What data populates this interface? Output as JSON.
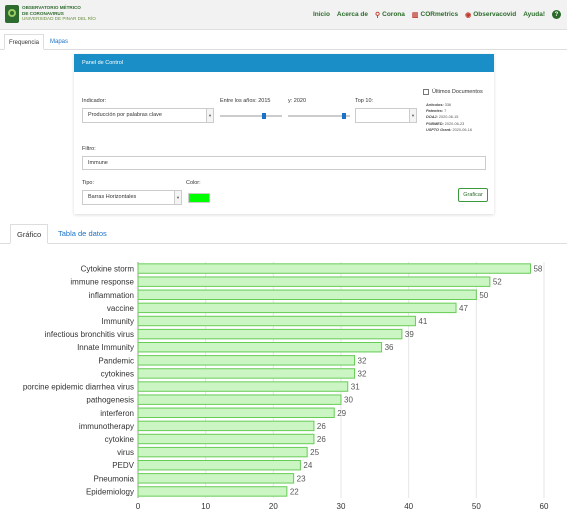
{
  "header": {
    "brand_lines": [
      "OBSERVATORIO MÉTRICO",
      "DE CORONAVIRUS",
      "UNIVERSIDAD DE PINAR DEL RÍO"
    ],
    "nav": [
      {
        "label": "Inicio",
        "icon": ""
      },
      {
        "label": "Acerca de",
        "icon": ""
      },
      {
        "label": "Corona",
        "icon": "magnifier-icon"
      },
      {
        "label": "CORmetrics",
        "icon": "chart-icon"
      },
      {
        "label": "Observacovid",
        "icon": "eye-icon"
      },
      {
        "label": "Ayuda!",
        "icon": "question-icon"
      }
    ]
  },
  "page_tabs": [
    "Frequencia",
    "Mapas"
  ],
  "panel": {
    "title": "Panel de Control",
    "indicator_label": "Indicador:",
    "indicator_value": "Producción por palabras clave",
    "years_label": "Entre los años: 2015",
    "year_to_label": "y: 2020",
    "top_label": "Top 10:",
    "latest_docs_label": "Últimos Documentos",
    "stats": [
      {
        "k": "Artículos:",
        "v": "336"
      },
      {
        "k": "Patentes:",
        "v": "7"
      },
      {
        "k": "DOAJ:",
        "v": "2020-06-15"
      },
      {
        "k": "PUBMED:",
        "v": "2020-06-23"
      },
      {
        "k": "USPTO Grant:",
        "v": "2020-06-16"
      }
    ],
    "filter_label": "Filtro:",
    "filter_value": "Immune",
    "type_label": "Tipo:",
    "type_value": "Barras Horizontales",
    "color_label": "Color:",
    "color_value": "#00ff00",
    "button_label": "Graficar",
    "accent_color": "#1a8fc7"
  },
  "result_tabs": [
    "Gráfico",
    "Tabla de datos"
  ],
  "chart_data": {
    "type": "bar",
    "orientation": "horizontal",
    "categories": [
      "Cytokine storm",
      "immune response",
      "inflammation",
      "vaccine",
      "Immunity",
      "infectious bronchitis virus",
      "Innate Immunity",
      "Pandemic",
      "cytokines",
      "porcine epidemic diarrhea virus",
      "pathogenesis",
      "interferon",
      "immunotherapy",
      "cytokine",
      "virus",
      "PEDV",
      "Pneumonia",
      "Epidemiology"
    ],
    "values": [
      58,
      52,
      50,
      47,
      41,
      39,
      36,
      32,
      32,
      31,
      30,
      29,
      26,
      26,
      25,
      24,
      23,
      22
    ],
    "xlim": [
      0,
      60
    ],
    "xticks": [
      0,
      10,
      20,
      30,
      40,
      50,
      60
    ],
    "bar_fill": "#ccf5c4",
    "bar_stroke": "#66cc55",
    "grid": true
  }
}
